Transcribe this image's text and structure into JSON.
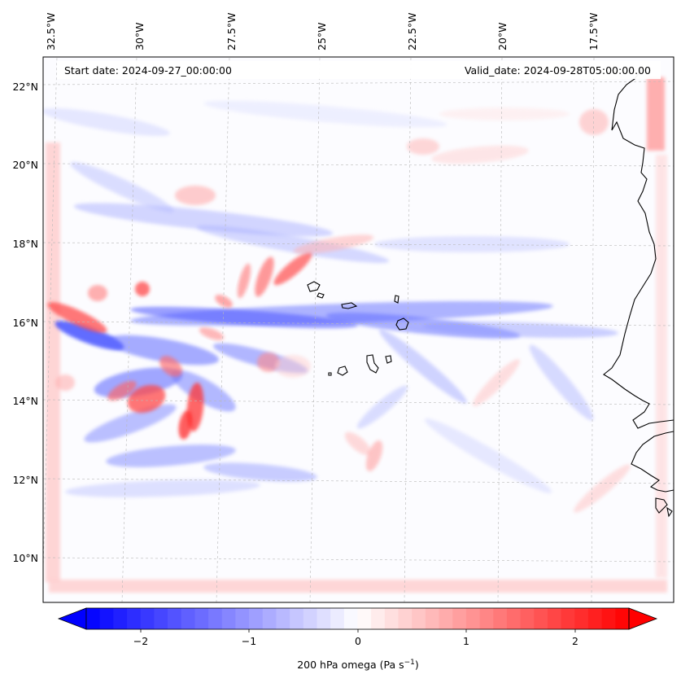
{
  "map": {
    "start_date": "Start date: 2024-09-27_00:00:00",
    "valid_date": "Valid_date: 2024-09-28T05:00:00.00",
    "lon_labels": [
      "32.5°W",
      "30°W",
      "27.5°W",
      "25°W",
      "22.5°W",
      "20°W",
      "17.5°W"
    ],
    "lat_labels": [
      "22°N",
      "20°N",
      "18°N",
      "16°N",
      "14°N",
      "12°N",
      "10°N"
    ],
    "gridlines": true,
    "colormap": "bwr",
    "colors": {
      "low": "#0000ff",
      "mid": "#ffffff",
      "high": "#ff0000",
      "coastline": "#000000"
    }
  },
  "colorbar": {
    "label_text": "200 hPa omega (Pa s",
    "label_exponent": "−1",
    "label_close": ")",
    "tick_labels": [
      "−2",
      "−1",
      "0",
      "1",
      "2"
    ],
    "range": [
      -2.7,
      2.7
    ],
    "extend": "both"
  }
}
